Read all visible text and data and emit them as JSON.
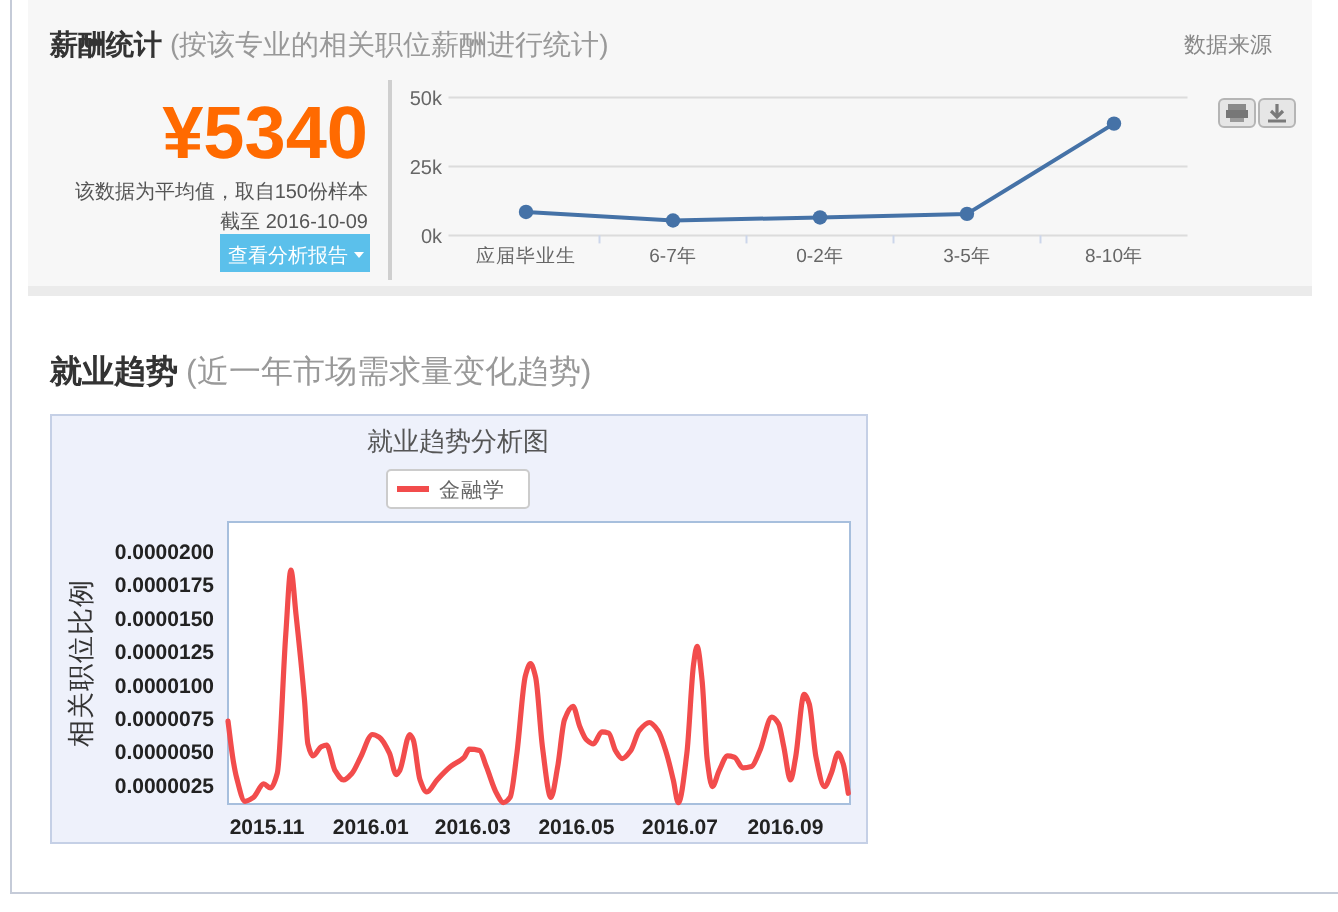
{
  "chart_data": [
    {
      "type": "other",
      "title": "薪酬统计",
      "subtitle": "(按该专业的相关职位薪酬进行统计)",
      "annotations": [
        "数据来源",
        "¥5340",
        "该数据为平均值，取自150份样本",
        "截至 2016-10-09",
        "查看分析报告"
      ]
    },
    {
      "type": "line",
      "categories": [
        "应届毕业生",
        "6-7年",
        "0-2年",
        "3-5年",
        "8-10年"
      ],
      "values": [
        8500,
        5400,
        6500,
        7800,
        40500
      ],
      "color": "#4572a7",
      "ylim": [
        0,
        50000
      ],
      "yticks": [
        {
          "value": 0,
          "label": "0k"
        },
        {
          "value": 25000,
          "label": "25k"
        },
        {
          "value": 50000,
          "label": "50k"
        }
      ],
      "grid": "y",
      "marker": "circle"
    },
    {
      "type": "other",
      "title": "就业趋势",
      "subtitle": "(近一年市场需求量变化趋势)"
    },
    {
      "type": "line",
      "title": "就业趋势分析图",
      "ylabel": "相关职位比例",
      "legend": "top",
      "marker": "none",
      "x": [
        "2015-10-09",
        "2015-10-12",
        "2015-10-14",
        "2015-10-19",
        "2015-10-24",
        "2015-10-30",
        "2015-11-03",
        "2015-11-07",
        "2015-11-12",
        "2015-11-15",
        "2015-11-18",
        "2015-11-23",
        "2015-11-25",
        "2015-11-28",
        "2015-12-03",
        "2015-12-06",
        "2015-12-11",
        "2015-12-16",
        "2015-12-21",
        "2015-12-26",
        "2016-01-02",
        "2016-01-06",
        "2016-01-12",
        "2016-01-16",
        "2016-01-18",
        "2016-01-24",
        "2016-01-26",
        "2016-01-30",
        "2016-02-03",
        "2016-02-09",
        "2016-02-17",
        "2016-02-25",
        "2016-02-28",
        "2016-03-05",
        "2016-03-09",
        "2016-03-15",
        "2016-03-19",
        "2016-03-23",
        "2016-03-27",
        "2016-04-01",
        "2016-04-04",
        "2016-04-07",
        "2016-04-11",
        "2016-04-16",
        "2016-04-20",
        "2016-04-24",
        "2016-04-29",
        "2016-05-03",
        "2016-05-07",
        "2016-05-11",
        "2016-05-16",
        "2016-05-20",
        "2016-05-24",
        "2016-05-28",
        "2016-06-02",
        "2016-06-07",
        "2016-06-13",
        "2016-06-18",
        "2016-06-23",
        "2016-06-27",
        "2016-06-30",
        "2016-07-05",
        "2016-07-09",
        "2016-07-11",
        "2016-07-14",
        "2016-07-17",
        "2016-07-20",
        "2016-07-24",
        "2016-07-29",
        "2016-08-02",
        "2016-08-07",
        "2016-08-12",
        "2016-08-17",
        "2016-08-24",
        "2016-08-28",
        "2016-08-31",
        "2016-09-04",
        "2016-09-07",
        "2016-09-12",
        "2016-09-15",
        "2016-09-19",
        "2016-09-24",
        "2016-09-28",
        "2016-10-02",
        "2016-10-05",
        "2016-10-08"
      ],
      "series": [
        {
          "name": "金融学",
          "color": "#f24c4c",
          "values": [
            7.3e-06,
            4.4e-06,
            3.1e-06,
            1.3e-06,
            1.6e-06,
            2.6e-06,
            2.3e-06,
            3.4e-06,
            1.38e-05,
            1.86e-05,
            1.53e-05,
            8.9e-06,
            5.6e-06,
            4.7e-06,
            5.4e-06,
            5.5e-06,
            3.6e-06,
            2.9e-06,
            3.4e-06,
            4.6e-06,
            6.3e-06,
            6.1e-06,
            4.9e-06,
            3.3e-06,
            3.6e-06,
            6.3e-06,
            5.9e-06,
            2.9e-06,
            2e-06,
            2.9e-06,
            3.9e-06,
            4.6e-06,
            5.2e-06,
            5.1e-06,
            3.9e-06,
            1.9e-06,
            1.2e-06,
            1.6e-06,
            4.9e-06,
            1.07e-05,
            1.16e-05,
            1.06e-05,
            5.4e-06,
            1.6e-06,
            3.9e-06,
            7.4e-06,
            8.4e-06,
            6.9e-06,
            5.9e-06,
            5.6e-06,
            6.5e-06,
            6.4e-06,
            5.1e-06,
            4.5e-06,
            5.1e-06,
            6.6e-06,
            7.2e-06,
            6.6e-06,
            4.9e-06,
            2.9e-06,
            1.2e-06,
            4.9e-06,
            1.16e-05,
            1.29e-05,
            1.03e-05,
            4.4e-06,
            2.4e-06,
            3.6e-06,
            4.7e-06,
            4.6e-06,
            3.8e-06,
            3.9e-06,
            5.1e-06,
            7.6e-06,
            7.1e-06,
            5.4e-06,
            2.9e-06,
            4.6e-06,
            9.3e-06,
            8.6e-06,
            4.6e-06,
            2.4e-06,
            3.4e-06,
            4.9e-06,
            4.1e-06,
            1.9e-06
          ]
        }
      ],
      "xlim": [
        "2015-10-09",
        "2016-10-09"
      ],
      "xticks": [
        {
          "value": "2015-11-01",
          "label": "2015.11"
        },
        {
          "value": "2016-01-01",
          "label": "2016.01"
        },
        {
          "value": "2016-03-01",
          "label": "2016.03"
        },
        {
          "value": "2016-05-01",
          "label": "2016.05"
        },
        {
          "value": "2016-07-01",
          "label": "2016.07"
        },
        {
          "value": "2016-09-01",
          "label": "2016.09"
        }
      ],
      "ylim": [
        1.1e-06,
        2.22e-05
      ],
      "yticks": [
        {
          "value": 2.5e-06,
          "label": "0.0000025"
        },
        {
          "value": 5e-06,
          "label": "0.0000050"
        },
        {
          "value": 7.5e-06,
          "label": "0.0000075"
        },
        {
          "value": 1e-05,
          "label": "0.0000100"
        },
        {
          "value": 1.25e-05,
          "label": "0.0000125"
        },
        {
          "value": 1.5e-05,
          "label": "0.0000150"
        },
        {
          "value": 1.75e-05,
          "label": "0.0000175"
        },
        {
          "value": 2e-05,
          "label": "0.0000200"
        }
      ]
    }
  ]
}
